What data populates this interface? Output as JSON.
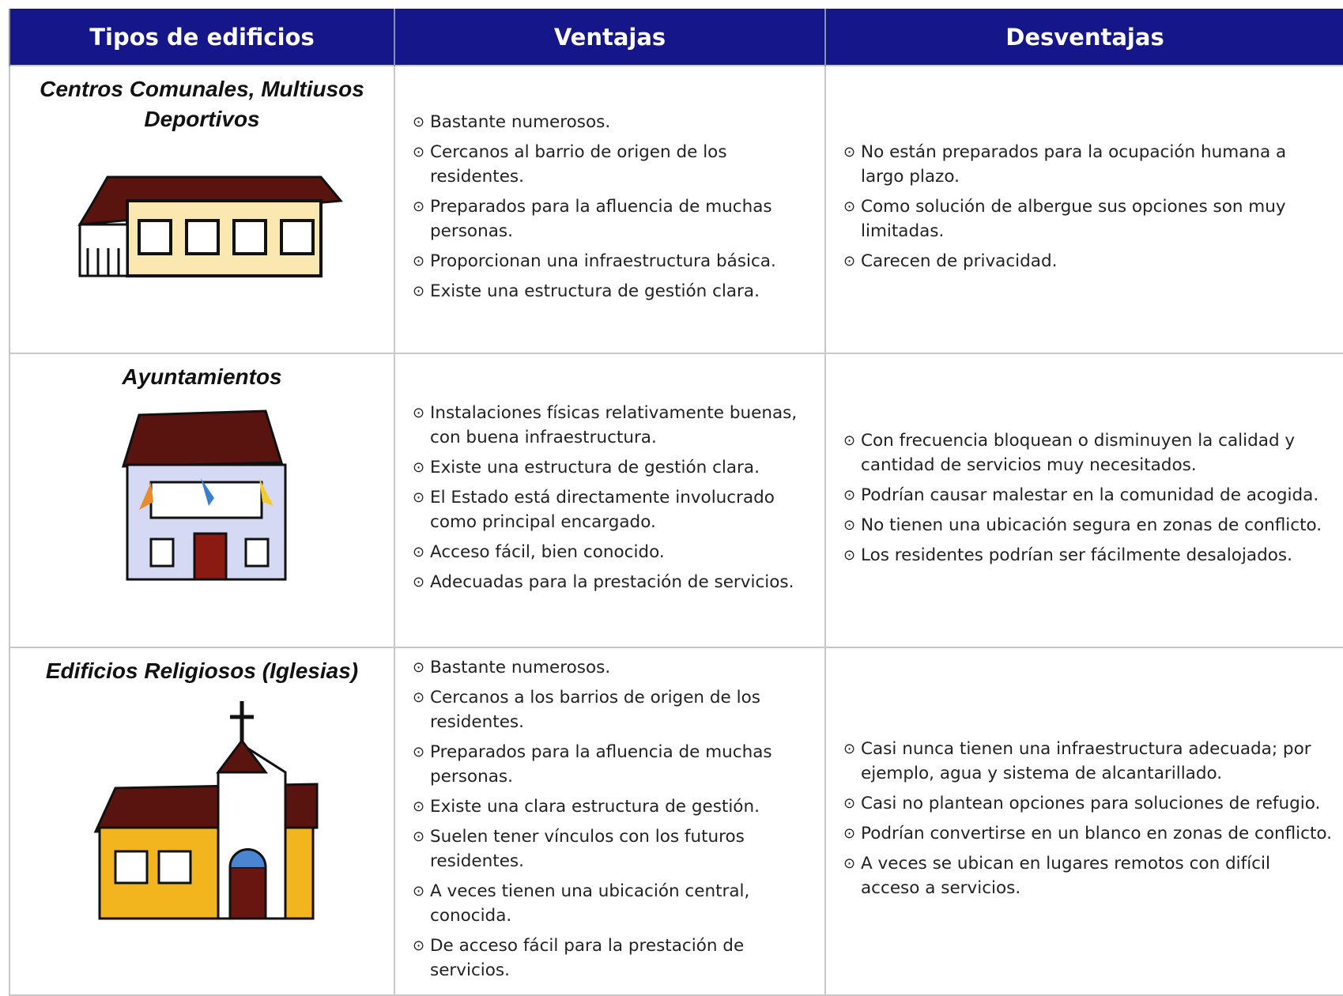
{
  "header": {
    "columns": [
      "Tipos de edificios",
      "Ventajas",
      "Desventajas"
    ]
  },
  "rows": [
    {
      "type": "Centros Comunales, Multiusos Deportivos",
      "ventajas": [
        "Bastante numerosos.",
        "Cercanos al barrio de origen de los residentes.",
        "Preparados para la afluencia de muchas personas.",
        "Proporcionan una infraestructura básica.",
        "Existe una estructura de gestión clara."
      ],
      "desventajas": [
        "No están preparados para la ocupación humana a largo plazo.",
        "Como solución de albergue sus opciones son muy limitadas.",
        "Carecen de privacidad."
      ]
    },
    {
      "type": "Ayuntamientos",
      "ventajas": [
        "Instalaciones físicas relativamente buenas, con buena infraestructura.",
        "Existe una estructura de gestión clara.",
        "El Estado está directamente involucrado como principal encargado.",
        "Acceso fácil, bien conocido.",
        "Adecuadas para la prestación de servicios."
      ],
      "desventajas": [
        "Con frecuencia bloquean o disminuyen la calidad y cantidad de servicios muy necesitados.",
        "Podrían causar malestar en la comunidad de acogida.",
        "No tienen una ubicación segura en zonas de conflicto.",
        "Los residentes podrían ser fácilmente desalojados."
      ]
    },
    {
      "type": "Edificios Religiosos (Iglesias)",
      "ventajas": [
        "Bastante numerosos.",
        "Cercanos a los barrios de origen de los residentes.",
        "Preparados para la afluencia de muchas personas.",
        "Existe una clara estructura de gestión.",
        "Suelen tener vínculos con los futuros residentes.",
        "A veces tienen una ubicación central, conocida.",
        "De acceso fácil para la prestación de servicios."
      ],
      "desventajas": [
        "Casi nunca tienen una infraestructura adecuada; por ejemplo, agua y sistema de alcantarillado.",
        "Casi no plantean opciones para soluciones de refugio.",
        "Podrían convertirse en un blanco en zonas de conflicto.",
        "A veces se ubican en lugares remotos con difícil acceso a servicios."
      ]
    }
  ]
}
